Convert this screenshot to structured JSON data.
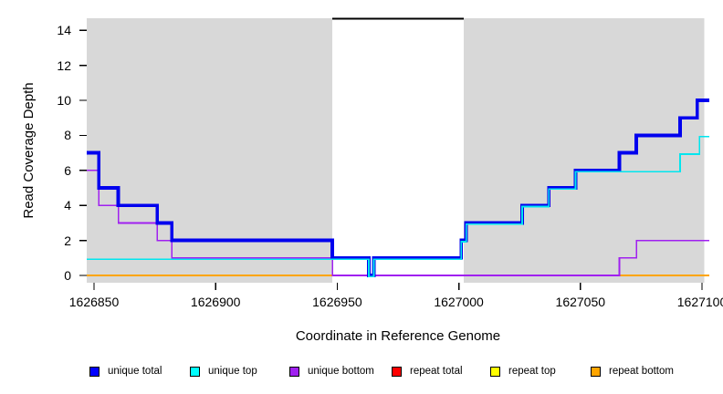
{
  "figure": {
    "background": "#ffffff",
    "band_color": "#d8d8d8"
  },
  "chart_data": {
    "type": "line",
    "title": "",
    "xlabel": "Coordinate in Reference Genome",
    "ylabel": "Read Coverage Depth",
    "xlim": [
      1626847,
      1627103
    ],
    "ylim": [
      0,
      14.7
    ],
    "grid": false,
    "legend_position": "bottom",
    "xticks": [
      1626850,
      1626900,
      1626950,
      1627000,
      1627050,
      1627100
    ],
    "yticks": [
      0,
      2,
      4,
      6,
      8,
      10,
      12,
      14
    ],
    "shaded_regions": [
      {
        "x0": 1626847,
        "x1": 1626948,
        "color": "#d8d8d8"
      },
      {
        "x0": 1627002,
        "x1": 1627101,
        "color": "#d8d8d8"
      }
    ],
    "gap_marker": {
      "x0": 1626948,
      "x1": 1627002,
      "y": 15,
      "color": "#000000"
    },
    "series": [
      {
        "name": "repeat total",
        "color": "#ee0000",
        "points": [
          [
            1626847,
            0
          ],
          [
            1627103,
            0
          ]
        ]
      },
      {
        "name": "repeat top",
        "color": "#ffff00",
        "points": [
          [
            1626847,
            0
          ],
          [
            1627103,
            0
          ]
        ]
      },
      {
        "name": "repeat bottom",
        "color": "#ffa500",
        "points": [
          [
            1626847,
            0
          ],
          [
            1627103,
            0
          ]
        ]
      },
      {
        "name": "unique bottom",
        "color": "#a020f0",
        "points": [
          [
            1626847,
            6
          ],
          [
            1626852,
            6
          ],
          [
            1626852,
            4
          ],
          [
            1626860,
            4
          ],
          [
            1626860,
            3
          ],
          [
            1626876,
            3
          ],
          [
            1626876,
            2
          ],
          [
            1626882,
            2
          ],
          [
            1626882,
            1
          ],
          [
            1626948,
            1
          ],
          [
            1626948,
            0
          ],
          [
            1627066,
            0
          ],
          [
            1627066,
            1
          ],
          [
            1627073,
            1
          ],
          [
            1627073,
            2
          ],
          [
            1627103,
            2
          ]
        ]
      },
      {
        "name": "unique total",
        "color": "#0000ee",
        "points": [
          [
            1626847,
            7
          ],
          [
            1626852,
            7
          ],
          [
            1626852,
            5
          ],
          [
            1626860,
            5
          ],
          [
            1626860,
            4
          ],
          [
            1626876,
            4
          ],
          [
            1626876,
            3
          ],
          [
            1626882,
            3
          ],
          [
            1626882,
            2
          ],
          [
            1626948,
            2
          ],
          [
            1626948,
            1
          ],
          [
            1626963,
            1
          ],
          [
            1626963,
            0
          ],
          [
            1626965,
            0
          ],
          [
            1626965,
            1
          ],
          [
            1627001,
            1
          ],
          [
            1627001,
            2
          ],
          [
            1627003,
            2
          ],
          [
            1627003,
            3
          ],
          [
            1627026,
            3
          ],
          [
            1627026,
            4
          ],
          [
            1627037,
            4
          ],
          [
            1627037,
            5
          ],
          [
            1627048,
            5
          ],
          [
            1627048,
            6
          ],
          [
            1627066,
            6
          ],
          [
            1627066,
            7
          ],
          [
            1627073,
            7
          ],
          [
            1627073,
            8
          ],
          [
            1627091,
            8
          ],
          [
            1627091,
            9
          ],
          [
            1627098,
            9
          ],
          [
            1627098,
            10
          ],
          [
            1627103,
            10
          ]
        ]
      },
      {
        "name": "unique top",
        "color": "#00e6ee",
        "points": [
          [
            1626847,
            1
          ],
          [
            1626948,
            1
          ],
          [
            1626963,
            1
          ],
          [
            1626963,
            0
          ],
          [
            1626965,
            0
          ],
          [
            1626965,
            1
          ],
          [
            1627001,
            1
          ],
          [
            1627001,
            2
          ],
          [
            1627003,
            2
          ],
          [
            1627003,
            3
          ],
          [
            1627026,
            3
          ],
          [
            1627026,
            4
          ],
          [
            1627037,
            4
          ],
          [
            1627037,
            5
          ],
          [
            1627048,
            5
          ],
          [
            1627048,
            6
          ],
          [
            1627091,
            6
          ],
          [
            1627091,
            7
          ],
          [
            1627099,
            7
          ],
          [
            1627099,
            8
          ],
          [
            1627103,
            8
          ]
        ]
      }
    ]
  },
  "legend": {
    "items": [
      {
        "label": "unique total",
        "color": "#0000ff"
      },
      {
        "label": "unique top",
        "color": "#00ffff"
      },
      {
        "label": "unique bottom",
        "color": "#a020f0"
      },
      {
        "label": "repeat total",
        "color": "#ff0000"
      },
      {
        "label": "repeat top",
        "color": "#ffff00"
      },
      {
        "label": "repeat bottom",
        "color": "#ffa500"
      }
    ]
  }
}
